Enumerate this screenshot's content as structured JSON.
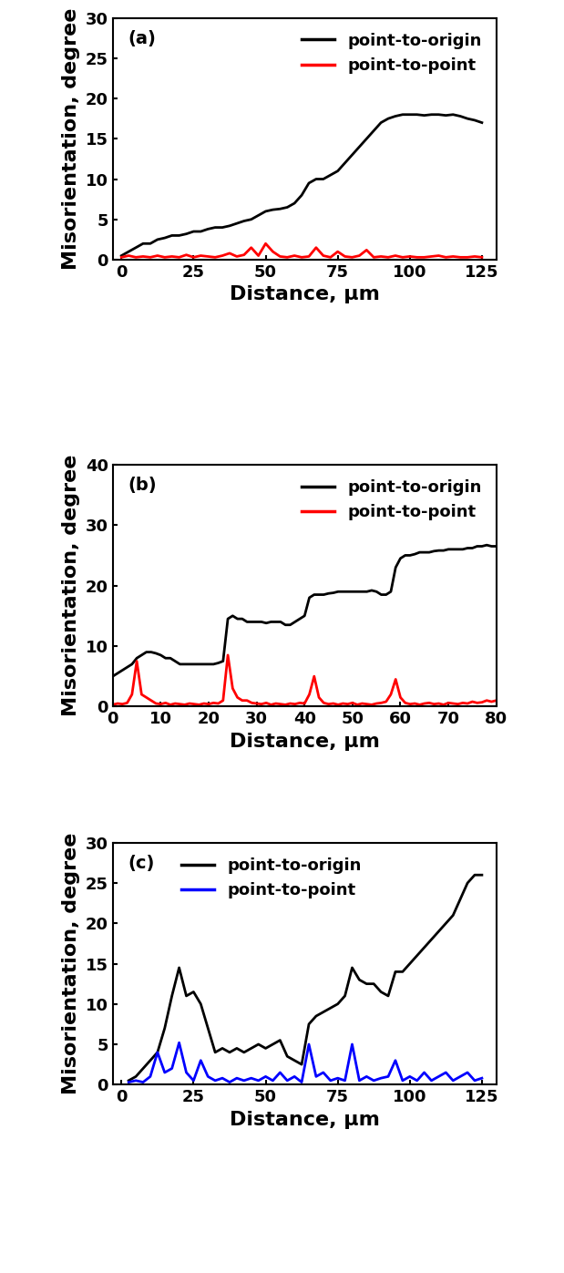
{
  "chart_data": [
    {
      "type": "line",
      "annotation": "(a)",
      "x_label": "Distance, μm",
      "y_label": "Misorientation, degree",
      "xlim": [
        -3,
        130
      ],
      "xticks": [
        0,
        25,
        50,
        75,
        100,
        125
      ],
      "ylim": [
        0,
        30
      ],
      "yticks": [
        0,
        5,
        10,
        15,
        20,
        25,
        30
      ],
      "legend": "upper right",
      "x": [
        0,
        2.5,
        5,
        7.5,
        10,
        12.5,
        15,
        17.5,
        20,
        22.5,
        25,
        27.5,
        30,
        32.5,
        35,
        37.5,
        40,
        42.5,
        45,
        47.5,
        50,
        52.5,
        55,
        57.5,
        60,
        62.5,
        65,
        67.5,
        70,
        72.5,
        75,
        77.5,
        80,
        82.5,
        85,
        87.5,
        90,
        92.5,
        95,
        97.5,
        100,
        102.5,
        105,
        107.5,
        110,
        112.5,
        115,
        117.5,
        120,
        122.5,
        125
      ],
      "series": [
        {
          "name": "point-to-origin",
          "color": "#000000",
          "line_style": "solid",
          "values": [
            0.5,
            1,
            1.5,
            2,
            2,
            2.5,
            2.7,
            3,
            3,
            3.2,
            3.5,
            3.5,
            3.8,
            4,
            4,
            4.2,
            4.5,
            4.8,
            5,
            5.5,
            6,
            6.2,
            6.3,
            6.5,
            7,
            8,
            9.5,
            10,
            10,
            10.5,
            11,
            12,
            13,
            14,
            15,
            16,
            17,
            17.5,
            17.8,
            18,
            18,
            18,
            17.9,
            18,
            18,
            17.9,
            18,
            17.8,
            17.5,
            17.3,
            17
          ]
        },
        {
          "name": "point-to-point",
          "color": "#ff0000",
          "line_style": "solid",
          "values": [
            0.3,
            0.5,
            0.3,
            0.4,
            0.3,
            0.5,
            0.3,
            0.4,
            0.3,
            0.6,
            0.3,
            0.5,
            0.4,
            0.3,
            0.5,
            0.8,
            0.4,
            0.6,
            1.5,
            0.5,
            2,
            1,
            0.4,
            0.3,
            0.5,
            0.3,
            0.4,
            1.5,
            0.5,
            0.3,
            1,
            0.4,
            0.3,
            0.5,
            1.2,
            0.3,
            0.4,
            0.3,
            0.5,
            0.3,
            0.4,
            0.3,
            0.3,
            0.4,
            0.5,
            0.3,
            0.4,
            0.3,
            0.3,
            0.4,
            0.3
          ]
        }
      ]
    },
    {
      "type": "line",
      "annotation": "(b)",
      "x_label": "Distance, μm",
      "y_label": "Misorientation, degree",
      "xlim": [
        0,
        80
      ],
      "xticks": [
        0,
        10,
        20,
        30,
        40,
        50,
        60,
        70,
        80
      ],
      "ylim": [
        0,
        40
      ],
      "yticks": [
        0,
        10,
        20,
        30,
        40
      ],
      "legend": "upper right",
      "x": [
        0,
        1,
        2,
        3,
        4,
        5,
        6,
        7,
        8,
        9,
        10,
        11,
        12,
        13,
        14,
        15,
        16,
        17,
        18,
        19,
        20,
        21,
        22,
        23,
        24,
        25,
        26,
        27,
        28,
        29,
        30,
        31,
        32,
        33,
        34,
        35,
        36,
        37,
        38,
        39,
        40,
        41,
        42,
        43,
        44,
        45,
        46,
        47,
        48,
        49,
        50,
        51,
        52,
        53,
        54,
        55,
        56,
        57,
        58,
        59,
        60,
        61,
        62,
        63,
        64,
        65,
        66,
        67,
        68,
        69,
        70,
        71,
        72,
        73,
        74,
        75,
        76,
        77,
        78,
        79,
        80
      ],
      "series": [
        {
          "name": "point-to-origin",
          "color": "#000000",
          "line_style": "solid",
          "values": [
            5,
            5.5,
            6,
            6.5,
            7,
            8,
            8.5,
            9,
            9,
            8.8,
            8.5,
            8,
            8,
            7.5,
            7,
            7,
            7,
            7,
            7,
            7,
            7,
            7,
            7.2,
            7.5,
            14.5,
            15,
            14.5,
            14.5,
            14,
            14,
            14,
            14,
            13.8,
            14,
            14,
            14,
            13.5,
            13.5,
            14,
            14.5,
            15,
            18,
            18.5,
            18.5,
            18.5,
            18.7,
            18.8,
            19,
            19,
            19,
            19,
            19,
            19,
            19,
            19.2,
            19,
            18.5,
            18.5,
            19,
            23,
            24.5,
            25,
            25,
            25.2,
            25.5,
            25.5,
            25.5,
            25.7,
            25.8,
            25.8,
            26,
            26,
            26,
            26,
            26.2,
            26.2,
            26.5,
            26.5,
            26.7,
            26.5,
            26.5
          ]
        },
        {
          "name": "point-to-point",
          "color": "#ff0000",
          "line_style": "solid",
          "values": [
            0.3,
            0.5,
            0.4,
            0.6,
            2,
            7.5,
            2,
            1.5,
            1,
            0.5,
            0.4,
            0.6,
            0.3,
            0.5,
            0.4,
            0.3,
            0.5,
            0.4,
            0.3,
            0.5,
            0.4,
            0.6,
            0.5,
            1,
            8.5,
            3,
            1.5,
            1,
            1,
            0.6,
            0.5,
            0.4,
            0.6,
            0.3,
            0.5,
            0.4,
            0.3,
            0.5,
            0.4,
            0.6,
            0.5,
            2,
            5,
            1.5,
            0.6,
            0.4,
            0.5,
            0.3,
            0.5,
            0.4,
            0.6,
            0.3,
            0.5,
            0.4,
            0.3,
            0.5,
            0.6,
            0.8,
            2,
            4.5,
            1.5,
            0.6,
            0.4,
            0.5,
            0.3,
            0.5,
            0.6,
            0.4,
            0.5,
            0.3,
            0.6,
            0.5,
            0.4,
            0.6,
            0.5,
            0.8,
            0.6,
            0.7,
            1,
            0.8,
            1
          ]
        }
      ]
    },
    {
      "type": "line",
      "annotation": "(c)",
      "x_label": "Distance, μm",
      "y_label": "Misorientation, degree",
      "xlim": [
        -3,
        130
      ],
      "xticks": [
        0,
        25,
        50,
        75,
        100,
        125
      ],
      "ylim": [
        0,
        30
      ],
      "yticks": [
        0,
        5,
        10,
        15,
        20,
        25,
        30
      ],
      "legend": "upper left",
      "x": [
        2.5,
        5,
        7.5,
        10,
        12.5,
        15,
        17.5,
        20,
        22.5,
        25,
        27.5,
        30,
        32.5,
        35,
        37.5,
        40,
        42.5,
        45,
        47.5,
        50,
        52.5,
        55,
        57.5,
        60,
        62.5,
        65,
        67.5,
        70,
        72.5,
        75,
        77.5,
        80,
        82.5,
        85,
        87.5,
        90,
        92.5,
        95,
        97.5,
        100,
        102.5,
        105,
        107.5,
        110,
        112.5,
        115,
        117.5,
        120,
        122.5,
        125
      ],
      "series": [
        {
          "name": "point-to-origin",
          "color": "#000000",
          "line_style": "solid",
          "values": [
            0.5,
            1,
            2,
            3,
            4,
            7,
            11,
            14.5,
            11,
            11.5,
            10,
            7,
            4,
            4.5,
            4,
            4.5,
            4,
            4.5,
            5,
            4.5,
            5,
            5.5,
            3.5,
            3,
            2.5,
            7.5,
            8.5,
            9,
            9.5,
            10,
            11,
            14.5,
            13,
            12.5,
            12.5,
            11.5,
            11,
            14,
            14,
            15,
            16,
            17,
            18,
            19,
            20,
            21,
            23,
            25,
            26,
            26
          ]
        },
        {
          "name": "point-to-point",
          "color": "#0000ff",
          "line_style": "solid",
          "values": [
            0.3,
            0.5,
            0.3,
            1,
            4,
            1.5,
            2,
            5.2,
            1.5,
            0.5,
            3,
            1,
            0.5,
            0.8,
            0.3,
            0.8,
            0.5,
            0.8,
            0.5,
            1,
            0.5,
            1.5,
            0.5,
            1,
            0.3,
            5,
            1,
            1.5,
            0.5,
            0.8,
            0.5,
            5,
            0.5,
            1,
            0.5,
            0.8,
            1,
            3,
            0.5,
            1,
            0.5,
            1.5,
            0.5,
            1,
            1.5,
            0.5,
            1,
            1.5,
            0.5,
            0.8
          ]
        }
      ]
    }
  ]
}
